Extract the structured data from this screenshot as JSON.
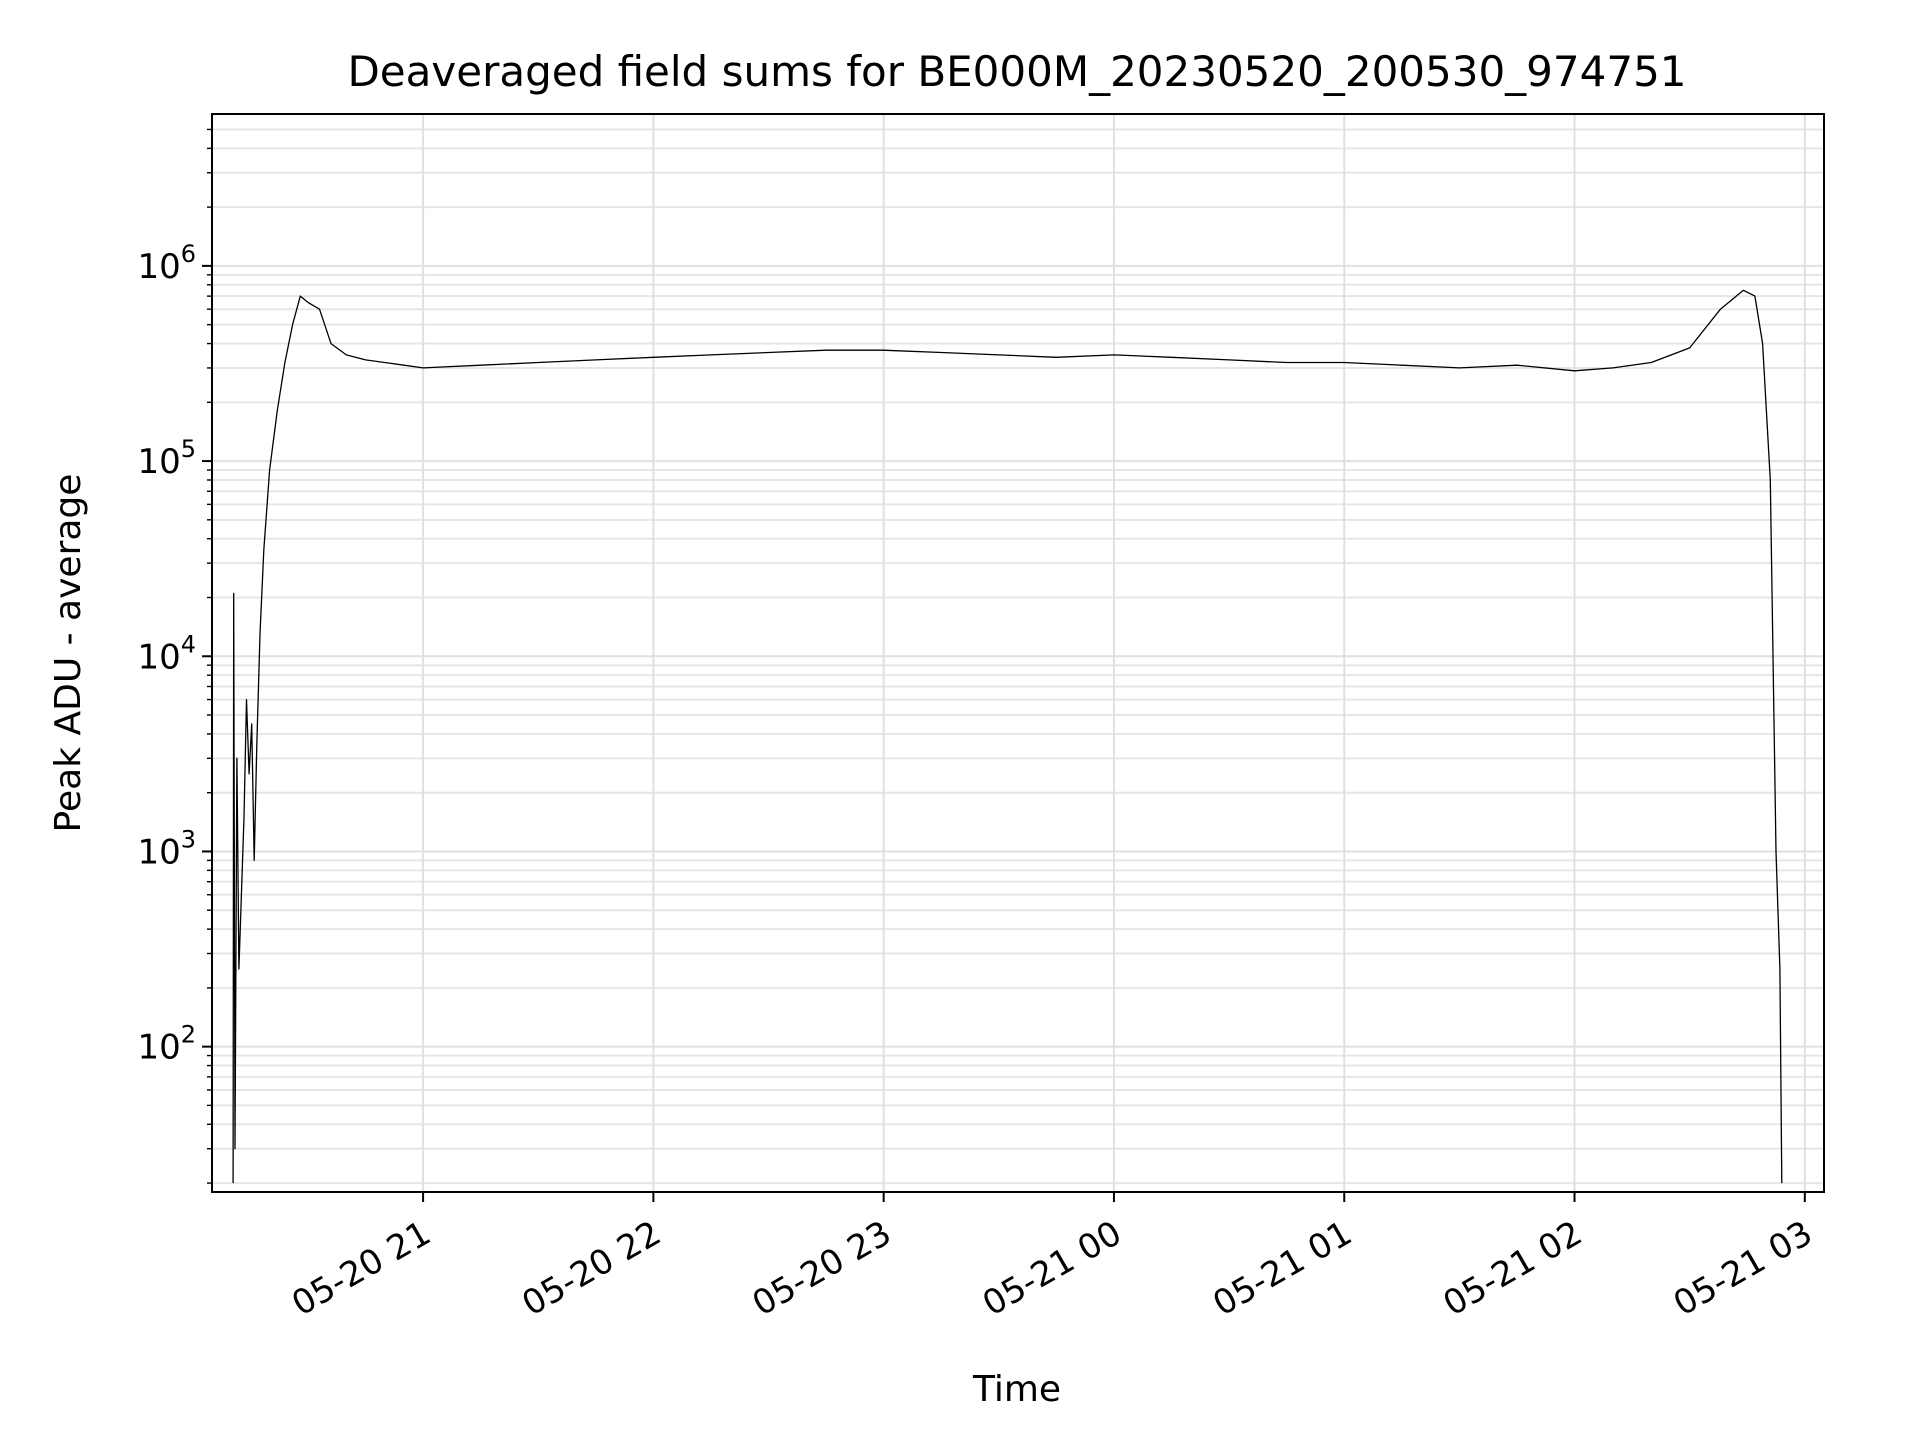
{
  "chart_data": {
    "type": "line",
    "title": "Deaveraged field sums for BE000M_20230520_200530_974751",
    "xlabel": "Time",
    "ylabel": "Peak ADU - average",
    "y_scale": "log",
    "grid": true,
    "legend": "none",
    "series_color": "#000000",
    "xlim": [
      "2023-05-20 20:05",
      "2023-05-21 03:05"
    ],
    "ylim": [
      18,
      6000000
    ],
    "x_ticks": [
      {
        "value": "2023-05-20 21:00",
        "label": "05-20 21"
      },
      {
        "value": "2023-05-20 22:00",
        "label": "05-20 22"
      },
      {
        "value": "2023-05-20 23:00",
        "label": "05-20 23"
      },
      {
        "value": "2023-05-21 00:00",
        "label": "05-21 00"
      },
      {
        "value": "2023-05-21 01:00",
        "label": "05-21 01"
      },
      {
        "value": "2023-05-21 02:00",
        "label": "05-21 02"
      },
      {
        "value": "2023-05-21 03:00",
        "label": "05-21 03"
      }
    ],
    "y_ticks": [
      {
        "value": 100,
        "base": "10",
        "exp": "2"
      },
      {
        "value": 1000,
        "base": "10",
        "exp": "3"
      },
      {
        "value": 10000,
        "base": "10",
        "exp": "4"
      },
      {
        "value": 100000,
        "base": "10",
        "exp": "5"
      },
      {
        "value": 1000000,
        "base": "10",
        "exp": "6"
      }
    ],
    "series": [
      {
        "x": [
          "2023-05-20 20:10:30",
          "2023-05-20 20:10:40",
          "2023-05-20 20:11:00",
          "2023-05-20 20:11:30",
          "2023-05-20 20:12:00",
          "2023-05-20 20:12:40",
          "2023-05-20 20:13:20",
          "2023-05-20 20:14:00",
          "2023-05-20 20:14:40",
          "2023-05-20 20:15:20",
          "2023-05-20 20:16:00",
          "2023-05-20 20:16:40",
          "2023-05-20 20:17:30",
          "2023-05-20 20:18:30",
          "2023-05-20 20:20:00",
          "2023-05-20 20:22:00",
          "2023-05-20 20:24:00",
          "2023-05-20 20:26:00",
          "2023-05-20 20:28:00",
          "2023-05-20 20:30:00",
          "2023-05-20 20:33:00",
          "2023-05-20 20:36:00",
          "2023-05-20 20:40:00",
          "2023-05-20 20:45:00",
          "2023-05-20 20:50:00",
          "2023-05-20 20:55:00",
          "2023-05-20 21:00:00",
          "2023-05-20 21:15:00",
          "2023-05-20 21:30:00",
          "2023-05-20 21:45:00",
          "2023-05-20 22:00:00",
          "2023-05-20 22:15:00",
          "2023-05-20 22:30:00",
          "2023-05-20 22:45:00",
          "2023-05-20 23:00:00",
          "2023-05-20 23:15:00",
          "2023-05-20 23:30:00",
          "2023-05-20 23:45:00",
          "2023-05-21 00:00:00",
          "2023-05-21 00:15:00",
          "2023-05-21 00:30:00",
          "2023-05-21 00:45:00",
          "2023-05-21 01:00:00",
          "2023-05-21 01:15:00",
          "2023-05-21 01:30:00",
          "2023-05-21 01:45:00",
          "2023-05-21 02:00:00",
          "2023-05-21 02:10:00",
          "2023-05-21 02:20:00",
          "2023-05-21 02:30:00",
          "2023-05-21 02:38:00",
          "2023-05-21 02:44:00",
          "2023-05-21 02:47:00",
          "2023-05-21 02:49:00",
          "2023-05-21 02:51:00",
          "2023-05-21 02:52:30",
          "2023-05-21 02:53:30",
          "2023-05-21 02:54:00"
        ],
        "y": [
          20,
          21000,
          30,
          3000,
          250,
          600,
          1500,
          6000,
          2500,
          4500,
          900,
          3500,
          13000,
          35000,
          90000,
          180000,
          320000,
          500000,
          700000,
          650000,
          600000,
          400000,
          350000,
          330000,
          320000,
          310000,
          300000,
          310000,
          320000,
          330000,
          340000,
          350000,
          360000,
          370000,
          370000,
          360000,
          350000,
          340000,
          350000,
          340000,
          330000,
          320000,
          320000,
          310000,
          300000,
          310000,
          290000,
          300000,
          320000,
          380000,
          600000,
          750000,
          700000,
          400000,
          80000,
          1000,
          250,
          20
        ]
      }
    ]
  }
}
